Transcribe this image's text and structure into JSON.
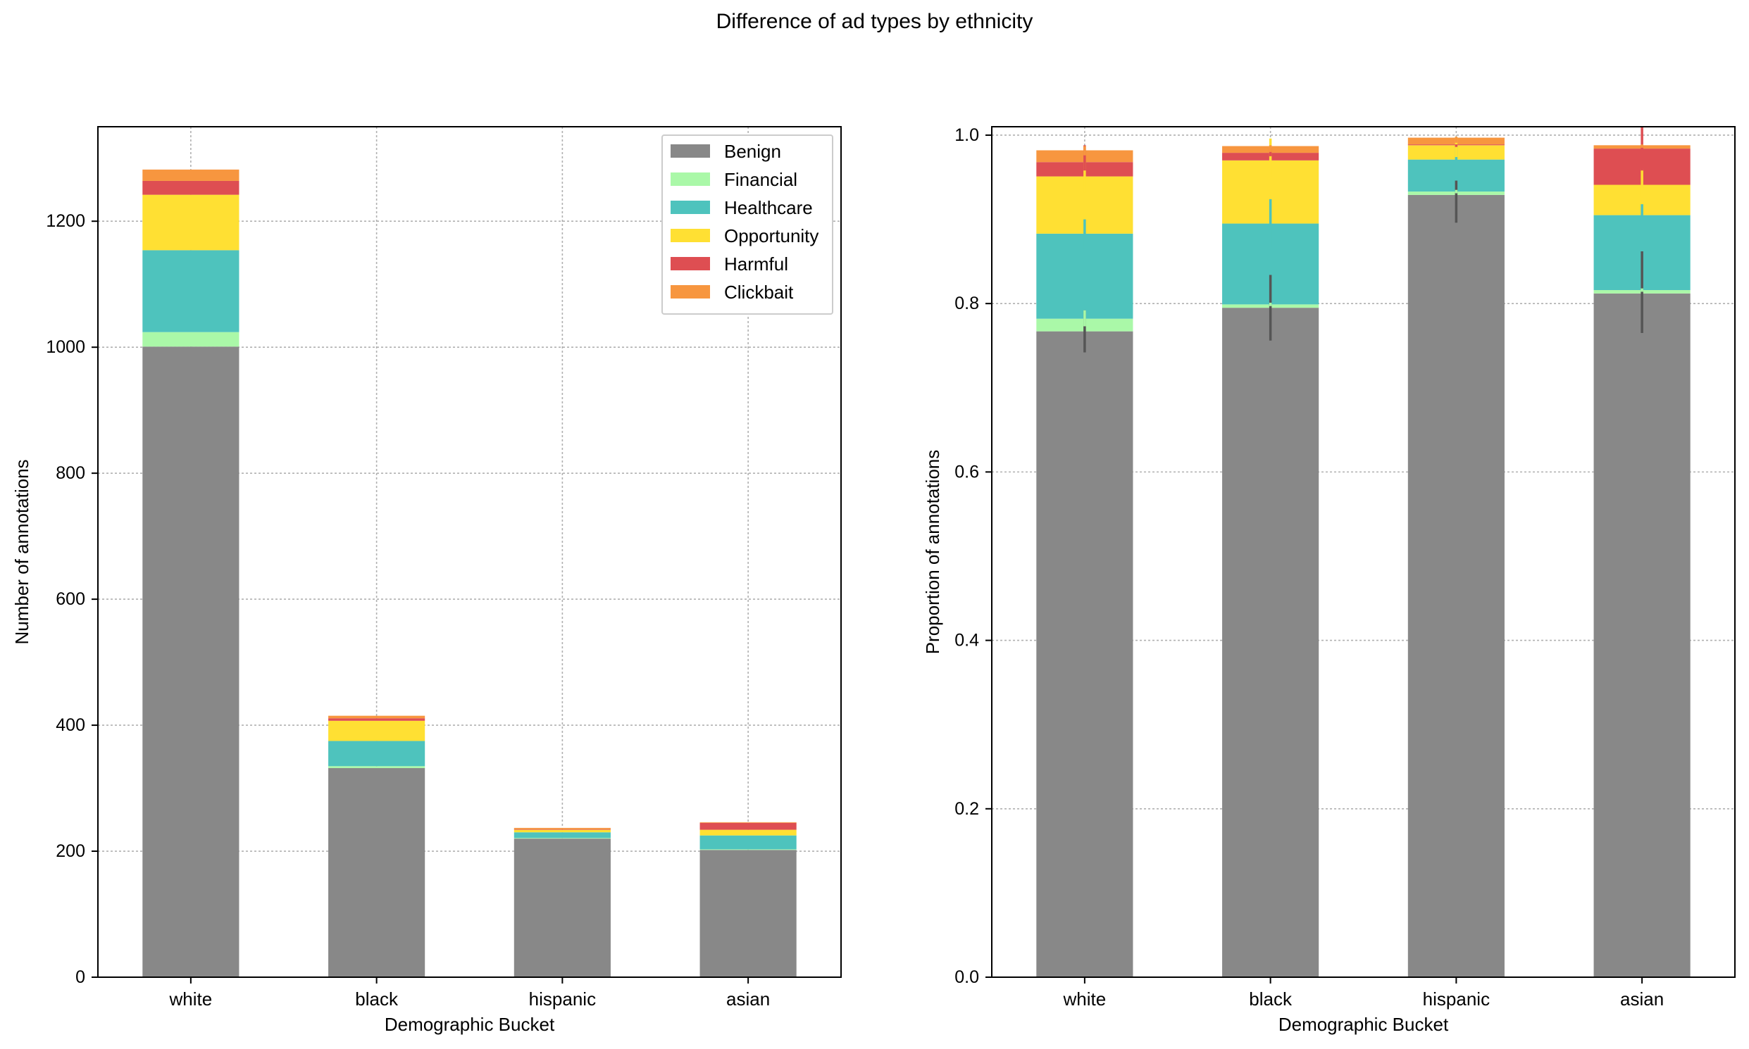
{
  "figure": {
    "title": "Difference of ad types by ethnicity"
  },
  "colors": {
    "Benign": "#888888",
    "Financial": "#aaf8a8",
    "Healthcare": "#4ec3bd",
    "Opportunity": "#ffe033",
    "Harmful": "#de4e52",
    "Clickbait": "#f7963f",
    "grid": "#b0b0b0"
  },
  "chart_data": [
    {
      "type": "bar",
      "stacked": true,
      "title": "",
      "xlabel": "Demographic Bucket",
      "ylabel": "Number of annotations",
      "categories": [
        "white",
        "black",
        "hispanic",
        "asian"
      ],
      "ylim": [
        0,
        1350
      ],
      "yticks": [
        0,
        200,
        400,
        600,
        800,
        1000,
        1200
      ],
      "ytick_labels": [
        "0",
        "200",
        "400",
        "600",
        "800",
        "1000",
        "1200"
      ],
      "grid": true,
      "legend": {
        "placement": "top-right",
        "entries": [
          "Benign",
          "Financial",
          "Healthcare",
          "Opportunity",
          "Harmful",
          "Clickbait"
        ]
      },
      "series": [
        {
          "name": "Benign",
          "values": [
            1001,
            332,
            220,
            202
          ]
        },
        {
          "name": "Financial",
          "values": [
            23,
            3,
            1,
            1
          ]
        },
        {
          "name": "Healthcare",
          "values": [
            130,
            40,
            9,
            22
          ]
        },
        {
          "name": "Opportunity",
          "values": [
            88,
            32,
            4,
            9
          ]
        },
        {
          "name": "Harmful",
          "values": [
            22,
            4,
            1,
            11
          ]
        },
        {
          "name": "Clickbait",
          "values": [
            18,
            4,
            2,
            1
          ]
        }
      ]
    },
    {
      "type": "bar",
      "stacked": true,
      "title": "",
      "xlabel": "Demographic Bucket",
      "ylabel": "Proportion of annotations",
      "categories": [
        "white",
        "black",
        "hispanic",
        "asian"
      ],
      "ylim": [
        0,
        1.01
      ],
      "yticks": [
        0,
        0.2,
        0.4,
        0.6,
        0.8,
        1.0
      ],
      "ytick_labels": [
        "0.0",
        "0.2",
        "0.4",
        "0.6",
        "0.8",
        "1.0"
      ],
      "grid": true,
      "series": [
        {
          "name": "Benign",
          "values": [
            0.767,
            0.795,
            0.929,
            0.812
          ]
        },
        {
          "name": "Financial",
          "values": [
            0.015,
            0.004,
            0.004,
            0.004
          ]
        },
        {
          "name": "Healthcare",
          "values": [
            0.101,
            0.096,
            0.038,
            0.089
          ]
        },
        {
          "name": "Opportunity",
          "values": [
            0.068,
            0.075,
            0.017,
            0.036
          ]
        },
        {
          "name": "Harmful",
          "values": [
            0.017,
            0.009,
            0.001,
            0.043
          ]
        },
        {
          "name": "Clickbait",
          "values": [
            0.014,
            0.008,
            0.008,
            0.004
          ]
        }
      ],
      "error_bars": [
        {
          "series": "Benign",
          "low": [
            0.742,
            0.756,
            0.896,
            0.765
          ],
          "high": [
            0.792,
            0.834,
            0.946,
            0.862
          ]
        },
        {
          "series": "Financial",
          "low": [
            0.773,
            0.797,
            0.931,
            0.814
          ],
          "high": [
            0.792,
            0.801,
            0.935,
            0.818
          ]
        },
        {
          "series": "Healthcare",
          "low": [
            0.865,
            0.867,
            0.955,
            0.868
          ],
          "high": [
            0.9,
            0.924,
            0.988,
            0.918
          ]
        },
        {
          "series": "Opportunity",
          "low": [
            0.932,
            0.95,
            0.974,
            0.926
          ],
          "high": [
            0.968,
            0.996,
            0.998,
            0.96
          ]
        },
        {
          "series": "Harmful",
          "low": [
            0.958,
            0.975,
            0.986,
            0.958
          ],
          "high": [
            0.988,
            0.985,
            0.989,
            1.01
          ]
        },
        {
          "series": "Clickbait",
          "low": [
            0.976,
            0.98,
            0.991,
            0.985
          ],
          "high": [
            0.987,
            0.988,
            0.998,
            0.989
          ]
        }
      ]
    }
  ]
}
